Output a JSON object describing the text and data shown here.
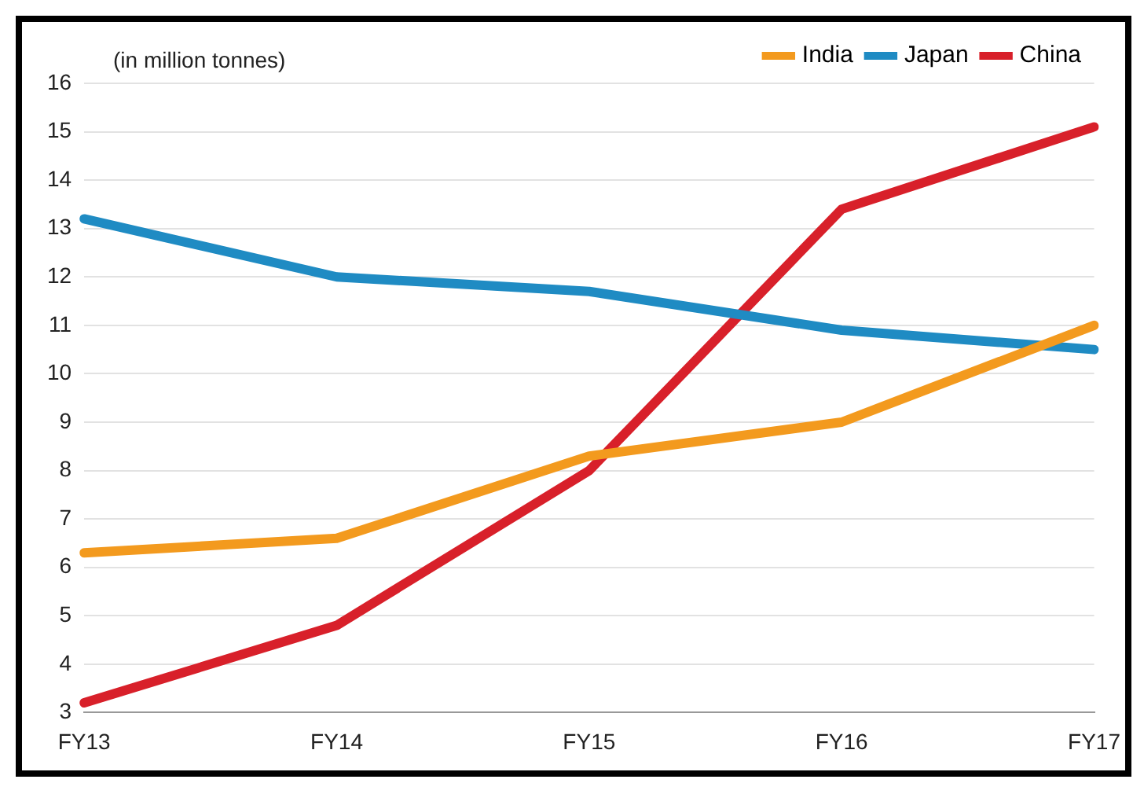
{
  "chart_data": {
    "type": "line",
    "ylabel": "(in million tonnes)",
    "categories": [
      "FY13",
      "FY14",
      "FY15",
      "FY16",
      "FY17"
    ],
    "series": [
      {
        "name": "India",
        "color": "#f39a1e",
        "values": [
          6.3,
          6.6,
          8.3,
          9.0,
          11.0
        ]
      },
      {
        "name": "Japan",
        "color": "#1f8bc3",
        "values": [
          13.2,
          12.0,
          11.7,
          10.9,
          10.5
        ]
      },
      {
        "name": "China",
        "color": "#d8202a",
        "values": [
          3.2,
          4.8,
          8.0,
          13.4,
          15.1
        ]
      }
    ],
    "ylim": [
      3,
      16
    ],
    "yticks": [
      3,
      4,
      5,
      6,
      7,
      8,
      9,
      10,
      11,
      12,
      13,
      14,
      15,
      16
    ],
    "grid": "y",
    "legend": "top right",
    "marker": "none",
    "line_style": "solid"
  }
}
